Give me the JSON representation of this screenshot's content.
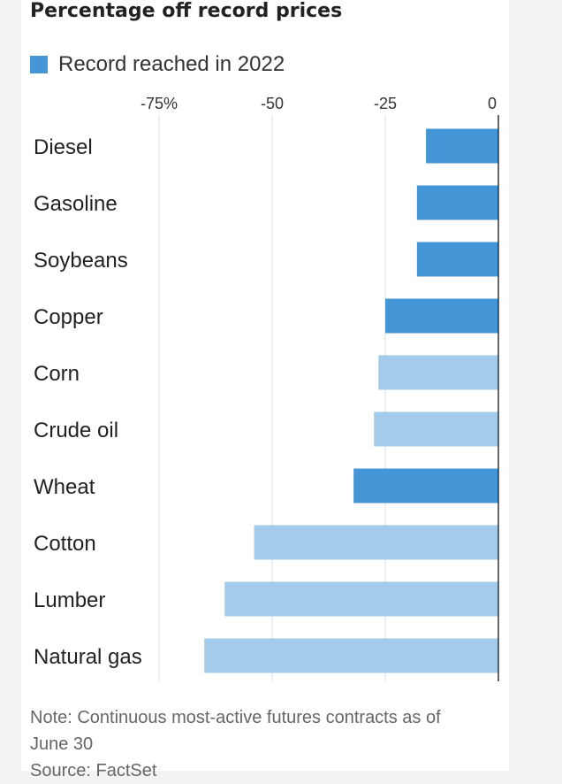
{
  "title": "Percentage off record prices",
  "note": "Note: Continuous most-active futures contracts as of",
  "note_line2": "June 30",
  "source": "Source: FactSet",
  "colors": {
    "record_2022": "#4496d6",
    "other": "#a3cbeb",
    "grid": "#dddddd",
    "axis": "#333333"
  },
  "chart_data": {
    "type": "bar",
    "orientation": "horizontal",
    "title": "Percentage off record prices",
    "xlabel": "",
    "ylabel": "",
    "xlim": [
      -75,
      0
    ],
    "ticks": [
      {
        "value": -75,
        "label": "-75%"
      },
      {
        "value": -50,
        "label": "-50"
      },
      {
        "value": -25,
        "label": "-25"
      },
      {
        "value": 0,
        "label": "0"
      }
    ],
    "grid": true,
    "legend": [
      {
        "label": "Record reached in 2022",
        "color": "#4496d6"
      }
    ],
    "legend_position": "top-left",
    "categories": [
      "Diesel",
      "Gasoline",
      "Soybeans",
      "Copper",
      "Corn",
      "Crude oil",
      "Wheat",
      "Cotton",
      "Lumber",
      "Natural gas"
    ],
    "values": [
      -16,
      -18,
      -18,
      -25,
      -26.5,
      -27.5,
      -32,
      -54,
      -60.5,
      -65
    ],
    "record_2022": [
      true,
      true,
      true,
      true,
      false,
      false,
      true,
      false,
      false,
      false
    ]
  }
}
